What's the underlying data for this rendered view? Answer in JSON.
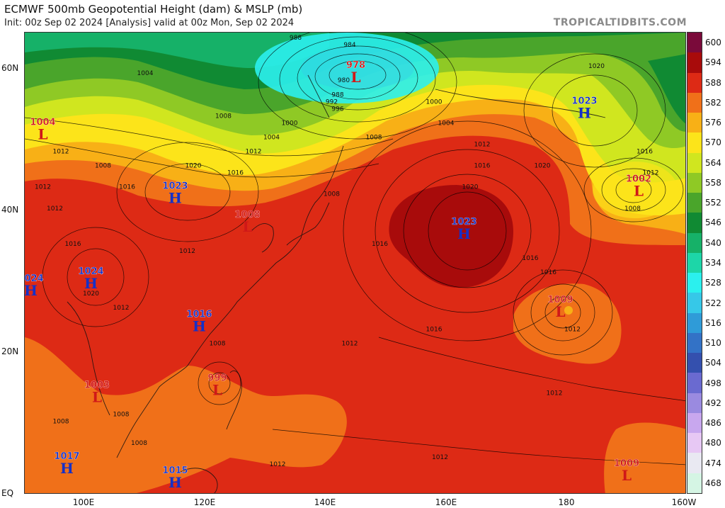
{
  "header": {
    "title": "ECMWF 500mb Geopotential Height (dam) & MSLP (mb)",
    "subtitle": "Init: 00z Sep 02 2024   [Analysis]   valid at 00z Mon, Sep 02 2024",
    "brand": "TROPICALTIDBITS.COM"
  },
  "axes": {
    "lat_labels": [
      "60N",
      "40N",
      "20N",
      "EQ"
    ],
    "lon_labels": [
      "100E",
      "120E",
      "140E",
      "160E",
      "180",
      "160W"
    ]
  },
  "colorbar": {
    "levels": [
      "600",
      "594",
      "588",
      "582",
      "576",
      "570",
      "564",
      "558",
      "552",
      "546",
      "540",
      "534",
      "528",
      "522",
      "516",
      "510",
      "504",
      "498",
      "492",
      "486",
      "480",
      "474",
      "468"
    ],
    "colors": [
      "#7a0a3a",
      "#a80b0b",
      "#dd2a15",
      "#f07019",
      "#f8b016",
      "#fce41a",
      "#d0e61f",
      "#8fc925",
      "#4aa52b",
      "#108a33",
      "#16b168",
      "#1dd6a8",
      "#2bf0ee",
      "#36c8e8",
      "#2f9bd8",
      "#3372c6",
      "#3450ae",
      "#6a6ad0",
      "#9a8ae0",
      "#c8a7ee",
      "#e7c8f4",
      "#e9e9f2",
      "#d5f5e4"
    ]
  },
  "systems": [
    {
      "type": "L",
      "pressure": "978",
      "lon": 145,
      "lat": 59
    },
    {
      "type": "L",
      "pressure": "1004",
      "lon": 93,
      "lat": 51
    },
    {
      "type": "H",
      "pressure": "1023",
      "lon": 183,
      "lat": 54
    },
    {
      "type": "L",
      "pressure": "1002",
      "lon": 192,
      "lat": 43
    },
    {
      "type": "H",
      "pressure": "1023",
      "lon": 115,
      "lat": 42
    },
    {
      "type": "L",
      "pressure": "1008",
      "lon": 127,
      "lat": 38
    },
    {
      "type": "H",
      "pressure": "1023",
      "lon": 163,
      "lat": 37
    },
    {
      "type": "H",
      "pressure": "1024",
      "lon": 101,
      "lat": 30
    },
    {
      "type": "H",
      "pressure": "1024",
      "lon": 91,
      "lat": 29
    },
    {
      "type": "L",
      "pressure": "1009",
      "lon": 179,
      "lat": 26
    },
    {
      "type": "H",
      "pressure": "1016",
      "lon": 119,
      "lat": 24
    },
    {
      "type": "L",
      "pressure": "999",
      "lon": 122,
      "lat": 15
    },
    {
      "type": "L",
      "pressure": "1003",
      "lon": 102,
      "lat": 14
    },
    {
      "type": "H",
      "pressure": "1017",
      "lon": 97,
      "lat": 4
    },
    {
      "type": "H",
      "pressure": "1015",
      "lon": 115,
      "lat": 2
    },
    {
      "type": "L",
      "pressure": "1009",
      "lon": 190,
      "lat": 3
    }
  ],
  "isobar_labels": [
    {
      "text": "984",
      "lon": 144,
      "lat": 63
    },
    {
      "text": "988",
      "lon": 135,
      "lat": 64
    },
    {
      "text": "980",
      "lon": 143,
      "lat": 58
    },
    {
      "text": "988",
      "lon": 142,
      "lat": 56
    },
    {
      "text": "992",
      "lon": 141,
      "lat": 55
    },
    {
      "text": "996",
      "lon": 142,
      "lat": 54
    },
    {
      "text": "1000",
      "lon": 134,
      "lat": 52
    },
    {
      "text": "1004",
      "lon": 131,
      "lat": 50
    },
    {
      "text": "1000",
      "lon": 158,
      "lat": 55
    },
    {
      "text": "1004",
      "lon": 160,
      "lat": 52
    },
    {
      "text": "1008",
      "lon": 148,
      "lat": 50
    },
    {
      "text": "1012",
      "lon": 166,
      "lat": 49
    },
    {
      "text": "1016",
      "lon": 166,
      "lat": 46
    },
    {
      "text": "1020",
      "lon": 164,
      "lat": 43
    },
    {
      "text": "1020",
      "lon": 185,
      "lat": 60
    },
    {
      "text": "1016",
      "lon": 193,
      "lat": 48
    },
    {
      "text": "1012",
      "lon": 194,
      "lat": 45
    },
    {
      "text": "1008",
      "lon": 191,
      "lat": 40
    },
    {
      "text": "1020",
      "lon": 176,
      "lat": 46
    },
    {
      "text": "1016",
      "lon": 174,
      "lat": 33
    },
    {
      "text": "1016",
      "lon": 177,
      "lat": 31
    },
    {
      "text": "1012",
      "lon": 181,
      "lat": 23
    },
    {
      "text": "1016",
      "lon": 158,
      "lat": 23
    },
    {
      "text": "1016",
      "lon": 149,
      "lat": 35
    },
    {
      "text": "1012",
      "lon": 144,
      "lat": 21
    },
    {
      "text": "1012",
      "lon": 178,
      "lat": 14
    },
    {
      "text": "1012",
      "lon": 159,
      "lat": 5
    },
    {
      "text": "1012",
      "lon": 132,
      "lat": 4
    },
    {
      "text": "1008",
      "lon": 122,
      "lat": 21
    },
    {
      "text": "1008",
      "lon": 109,
      "lat": 7
    },
    {
      "text": "1008",
      "lon": 96,
      "lat": 10
    },
    {
      "text": "1008",
      "lon": 106,
      "lat": 11
    },
    {
      "text": "1012",
      "lon": 96,
      "lat": 48
    },
    {
      "text": "1008",
      "lon": 103,
      "lat": 46
    },
    {
      "text": "1012",
      "lon": 93,
      "lat": 43
    },
    {
      "text": "1016",
      "lon": 107,
      "lat": 43
    },
    {
      "text": "1020",
      "lon": 118,
      "lat": 46
    },
    {
      "text": "1016",
      "lon": 125,
      "lat": 45
    },
    {
      "text": "1012",
      "lon": 128,
      "lat": 48
    },
    {
      "text": "1008",
      "lon": 123,
      "lat": 53
    },
    {
      "text": "1004",
      "lon": 110,
      "lat": 59
    },
    {
      "text": "1012",
      "lon": 95,
      "lat": 40
    },
    {
      "text": "1016",
      "lon": 98,
      "lat": 35
    },
    {
      "text": "1012",
      "lon": 117,
      "lat": 34
    },
    {
      "text": "1020",
      "lon": 101,
      "lat": 28
    },
    {
      "text": "1012",
      "lon": 106,
      "lat": 26
    },
    {
      "text": "1008",
      "lon": 141,
      "lat": 42
    }
  ]
}
